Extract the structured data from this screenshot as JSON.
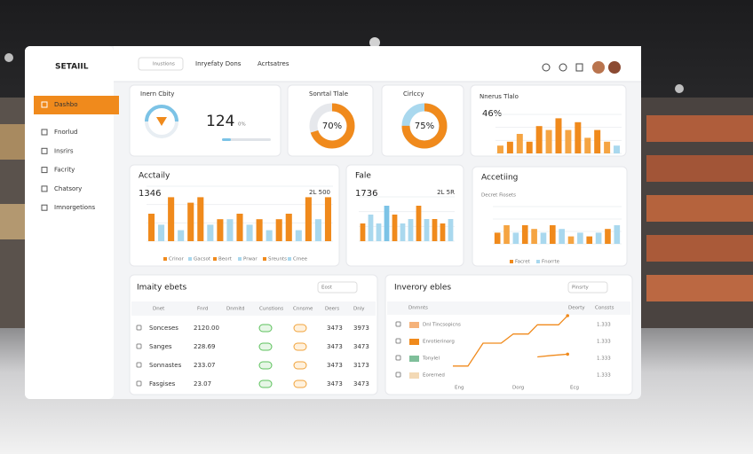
{
  "sidebar": {
    "logo": "SETAIIL",
    "items": [
      "Dashbo",
      "Fnorlud",
      "Insrirs",
      "Facrity",
      "Chatsory",
      "Imnorgetions"
    ]
  },
  "topbar": {
    "search": "Inustions",
    "menu": [
      "Inryefaty Dons",
      "Acrtsatres"
    ]
  },
  "gauge_card": {
    "title": "Inern Cbity",
    "value": "124",
    "unit": "0%"
  },
  "donuts": [
    {
      "title": "Sonrtal Tlale",
      "percent": 70,
      "label": "70%",
      "color": "#f08a1c",
      "rest": "#e6e8ec"
    },
    {
      "title": "Cirlccy",
      "percent": 75,
      "label": "75%",
      "color": "#f08a1c",
      "rest": "#a9d8ee"
    }
  ],
  "mini_bars": {
    "title": "Nnerus Tlalo",
    "value": "46%",
    "max": 10,
    "values": [
      2,
      3,
      5,
      3,
      7,
      6,
      9,
      6,
      8,
      4,
      6,
      3,
      2
    ],
    "colors": [
      "#f5a442",
      "#f08a1c",
      "#f5a442",
      "#f08a1c",
      "#f08a1c",
      "#f5a442",
      "#f08a1c",
      "#f5a442",
      "#f08a1c",
      "#f5a442",
      "#f08a1c",
      "#f5a442",
      "#a9d8ee"
    ]
  },
  "bar_cards": [
    {
      "title": "Acctaily",
      "value": "1346",
      "side": "2L 500",
      "max": 10,
      "values": [
        5,
        3,
        8,
        2,
        7,
        8,
        3,
        4,
        4,
        5,
        3,
        4,
        2,
        4,
        5,
        2,
        8,
        4,
        8
      ],
      "colors": [
        "#f08a1c",
        "#a9d8ee",
        "#f08a1c",
        "#a9d8ee",
        "#f08a1c",
        "#f08a1c",
        "#a9d8ee",
        "#f08a1c",
        "#a9d8ee",
        "#f08a1c",
        "#a9d8ee",
        "#f08a1c",
        "#a9d8ee",
        "#f08a1c",
        "#f08a1c",
        "#a9d8ee",
        "#f08a1c",
        "#a9d8ee",
        "#f08a1c"
      ],
      "legend": [
        "Crinor",
        "Gacsot",
        "Beort",
        "Prwar",
        "Sreunts",
        "Cmee"
      ]
    },
    {
      "title": "Fale",
      "value": "1736",
      "side": "2L 5R",
      "max": 10,
      "values": [
        4,
        6,
        4,
        8,
        6,
        4,
        5,
        8,
        5,
        5,
        4,
        5
      ],
      "colors": [
        "#f08a1c",
        "#a9d8ee",
        "#a9d8ee",
        "#7cc3e6",
        "#f08a1c",
        "#a9d8ee",
        "#a9d8ee",
        "#f08a1c",
        "#a9d8ee",
        "#f08a1c",
        "#f08a1c",
        "#a9d8ee"
      ],
      "legend": []
    },
    {
      "title": "Accetiing",
      "value": "Decret Fiosets",
      "side": "",
      "max": 10,
      "values": [
        3,
        5,
        3,
        5,
        4,
        3,
        5,
        4,
        2,
        3,
        2,
        3,
        4,
        5
      ],
      "colors": [
        "#f08a1c",
        "#f5a442",
        "#a9d8ee",
        "#f08a1c",
        "#f5a442",
        "#a9d8ee",
        "#f08a1c",
        "#a9d8ee",
        "#f5a442",
        "#a9d8ee",
        "#f08a1c",
        "#a9d8ee",
        "#f08a1c",
        "#a9d8ee"
      ],
      "legend": [
        "Facret",
        "Fnorrte"
      ]
    }
  ],
  "table_card": {
    "title": "Imaity ebets",
    "search": "Eost",
    "columns": [
      "Dnet",
      "Fnrd",
      "Dnrnitd",
      "Cunstions",
      "Cnnsme",
      "Deers",
      "Dnly"
    ],
    "rows": [
      [
        "Sonceses",
        "2120.00",
        "3473",
        "3973"
      ],
      [
        "Sanges",
        "228.69",
        "3473",
        "3473"
      ],
      [
        "Sonnastes",
        "233.07",
        "3473",
        "3173"
      ],
      [
        "Fasgises",
        "23.07",
        "3473",
        "3473"
      ]
    ]
  },
  "inventory_card": {
    "title": "Inverory ebles",
    "search": "Pinsrty",
    "columns": [
      "Dnrnnts",
      "Deorty",
      "Conssts"
    ],
    "rows": [
      [
        "Dnl Tincsopicns",
        "1.333"
      ],
      [
        "Enrotierinorg",
        "1.333"
      ],
      [
        "Tonylel",
        "1.333"
      ],
      [
        "Eorerned",
        "1.333"
      ]
    ],
    "line": [
      1,
      1,
      6,
      6,
      8,
      8,
      10,
      10,
      12
    ],
    "line_x": [
      0,
      1,
      2,
      3.2,
      4,
      5,
      5.6,
      7,
      7.6
    ],
    "line2": [
      3,
      3.3,
      3.6
    ],
    "line2_x": [
      5.6,
      6.5,
      7.6
    ],
    "xlabels": [
      "Eng",
      "Dorg",
      "Ecg"
    ]
  }
}
